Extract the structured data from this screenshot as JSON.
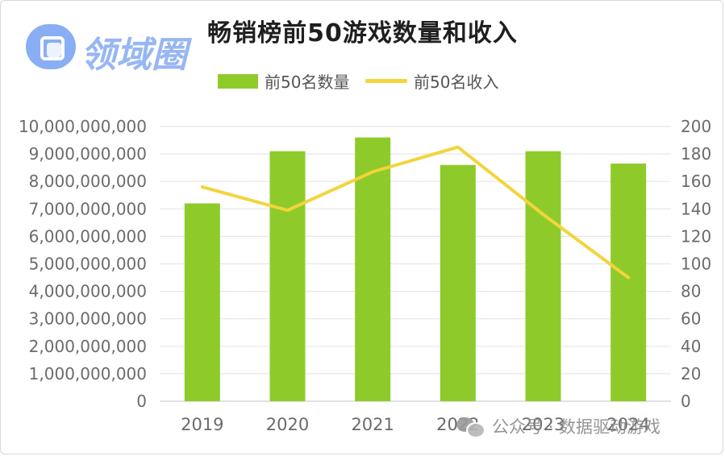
{
  "chart_data": {
    "type": "bar",
    "title": "畅销榜前50游戏数量和收入",
    "categories": [
      "2019",
      "2020",
      "2021",
      "2022",
      "2023",
      "2024"
    ],
    "series": [
      {
        "name": "前50名数量",
        "type": "bar",
        "axis": "left",
        "values": [
          7200000000,
          9100000000,
          9600000000,
          8600000000,
          9100000000,
          8650000000
        ]
      },
      {
        "name": "前50名收入",
        "type": "line",
        "axis": "right",
        "values": [
          156,
          139,
          167,
          185,
          136,
          90
        ]
      }
    ],
    "left_axis": {
      "ylim": [
        0,
        10000000000
      ],
      "ticks": [
        "0",
        "1,000,000,000",
        "2,000,000,000",
        "3,000,000,000",
        "4,000,000,000",
        "5,000,000,000",
        "6,000,000,000",
        "7,000,000,000",
        "8,000,000,000",
        "9,000,000,000",
        "10,000,000,000"
      ]
    },
    "right_axis": {
      "ylim": [
        0,
        200
      ],
      "ticks": [
        "0",
        "20",
        "40",
        "60",
        "80",
        "100",
        "120",
        "140",
        "160",
        "180",
        "200"
      ]
    },
    "grid": true,
    "legend_position": "top",
    "colors": {
      "bar": "#8ecb2a",
      "line": "#f3d43b",
      "grid": "#e6e6e6",
      "axis_text": "#6b6b6b"
    }
  },
  "logo": {
    "text": "领域圈"
  },
  "watermark": {
    "text": "公众号 · 数据驱动游戏"
  }
}
